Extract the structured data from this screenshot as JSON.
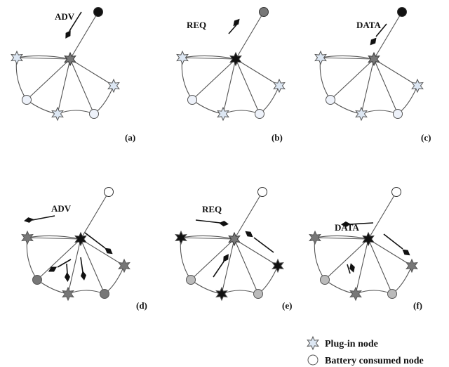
{
  "panels": [
    {
      "id": "a",
      "caption": "(a)",
      "message": "ADV",
      "root_color": "#111111",
      "hub_color": "#777777",
      "leaf_star_color": "#dde7f3",
      "leaf_circle_color": "#eef2fa"
    },
    {
      "id": "b",
      "caption": "(b)",
      "message": "REQ",
      "root_color": "#777777",
      "hub_color": "#111111",
      "leaf_star_color": "#dde7f3",
      "leaf_circle_color": "#eef2fa"
    },
    {
      "id": "c",
      "caption": "(c)",
      "message": "DATA",
      "root_color": "#111111",
      "hub_color": "#777777",
      "leaf_star_color": "#dde7f3",
      "leaf_circle_color": "#eef2fa"
    },
    {
      "id": "d",
      "caption": "(d)",
      "message": "ADV",
      "root_color": "#ffffff",
      "hub_color": "#111111",
      "leaf_star_color": "#777777",
      "leaf_circle_color": "#777777"
    },
    {
      "id": "e",
      "caption": "(e)",
      "message": "REQ",
      "root_color": "#ffffff",
      "hub_color": "#777777",
      "leaf_star_color": "#111111",
      "leaf_circle_color": "#bbbbbb"
    },
    {
      "id": "f",
      "caption": "(f)",
      "message": "DATA",
      "root_color": "#ffffff",
      "hub_color": "#111111",
      "leaf_star_color": "#777777",
      "leaf_circle_color": "#bbbbbb"
    }
  ],
  "legend": {
    "plugin_label": "Plug-in node",
    "battery_label": "Battery consumed node",
    "plugin_color": "#dde7f3",
    "battery_color": "#ffffff"
  }
}
